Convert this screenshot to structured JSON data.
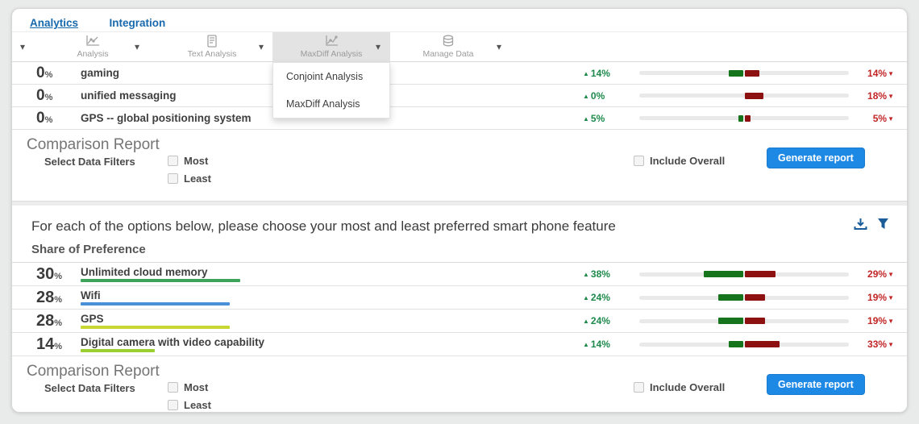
{
  "pct_symbol": "%",
  "icons": {
    "up": "▲",
    "down": "▼",
    "caret": "▾"
  },
  "colors": {
    "bar_green": "#15741c",
    "bar_red": "#8e1111",
    "button_blue": "#1e88e5",
    "tab_blue": "#1769ae",
    "icon_blue": "#1b5d99"
  },
  "tabs": [
    {
      "label": "Analytics",
      "active": true
    },
    {
      "label": "Integration",
      "active": false
    }
  ],
  "toolbar": {
    "items": [
      {
        "label": "Analysis",
        "icon": "line-chart-icon"
      },
      {
        "label": "Text Analysis",
        "icon": "document-icon"
      },
      {
        "label": "MaxDiff Analysis",
        "icon": "trend-chart-icon",
        "active": true
      },
      {
        "label": "Manage Data",
        "icon": "database-icon"
      }
    ],
    "dropdown_items": [
      {
        "label": "Conjoint Analysis"
      },
      {
        "label": "MaxDiff Analysis"
      }
    ]
  },
  "rows_top": [
    {
      "value": "0",
      "label": "gaming",
      "up_label": "14%",
      "up_pct": 14,
      "down_label": "14%",
      "down_pct": 14
    },
    {
      "value": "0",
      "label": "unified messaging",
      "up_label": "0%",
      "up_pct": 0,
      "down_label": "18%",
      "down_pct": 18
    },
    {
      "value": "0",
      "label": "GPS -- global positioning system",
      "up_label": "5%",
      "up_pct": 5,
      "down_label": "5%",
      "down_pct": 5
    }
  ],
  "comparison": {
    "title": "Comparison Report",
    "select_label": "Select Data Filters",
    "most_label": "Most",
    "least_label": "Least",
    "include_overall_label": "Include Overall",
    "generate_label": "Generate report"
  },
  "question_text": "For each of the options below, please choose your most and least preferred smart phone feature",
  "share_title": "Share of Preference",
  "rows_bottom": [
    {
      "value": "30",
      "label": "Unlimited cloud memory",
      "underline_color": "#3fa45b",
      "up_label": "38%",
      "up_pct": 38,
      "down_label": "29%",
      "down_pct": 29
    },
    {
      "value": "28",
      "label": "Wifi",
      "underline_color": "#4a90d9",
      "up_label": "24%",
      "up_pct": 24,
      "down_label": "19%",
      "down_pct": 19
    },
    {
      "value": "28",
      "label": "GPS",
      "underline_color": "#c9d733",
      "up_label": "24%",
      "up_pct": 24,
      "down_label": "19%",
      "down_pct": 19
    },
    {
      "value": "14",
      "label": "Digital camera with video capability",
      "underline_color": "#9bce2f",
      "up_label": "14%",
      "up_pct": 14,
      "down_label": "33%",
      "down_pct": 33
    }
  ]
}
